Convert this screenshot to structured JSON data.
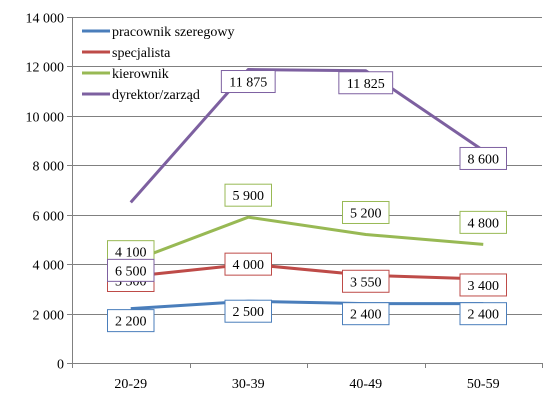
{
  "chart_data": {
    "type": "line",
    "title": "",
    "xlabel": "",
    "ylabel": "",
    "categories": [
      "20-29",
      "30-39",
      "40-49",
      "50-59"
    ],
    "ylim": [
      0,
      14000
    ],
    "y_ticks": [
      0,
      2000,
      4000,
      6000,
      8000,
      10000,
      12000,
      14000
    ],
    "y_tick_labels": [
      "0",
      "2 000",
      "4 000",
      "6 000",
      "8 000",
      "10 000",
      "12 000",
      "14 000"
    ],
    "grid": true,
    "legend_position": "top-left",
    "series": [
      {
        "name": "pracownik szeregowy",
        "color": "#4a7ebb",
        "values": [
          2200,
          2500,
          2400,
          2400
        ],
        "labels": [
          "2 200",
          "2 500",
          "2 400",
          "2 400"
        ]
      },
      {
        "name": "specjalista",
        "color": "#be4b48",
        "values": [
          3500,
          4000,
          3550,
          3400
        ],
        "labels": [
          "3 500",
          "4 000",
          "3 550",
          "3 400"
        ]
      },
      {
        "name": "kierownik",
        "color": "#98b954",
        "values": [
          4100,
          5900,
          5200,
          4800
        ],
        "labels": [
          "4 100",
          "5 900",
          "5 200",
          "4 800"
        ]
      },
      {
        "name": "dyrektor/zarząd",
        "color": "#7d60a0",
        "values": [
          6500,
          11875,
          11825,
          8600
        ],
        "labels": [
          "6 500",
          "11 875",
          "11 825",
          "8 600"
        ]
      }
    ]
  }
}
